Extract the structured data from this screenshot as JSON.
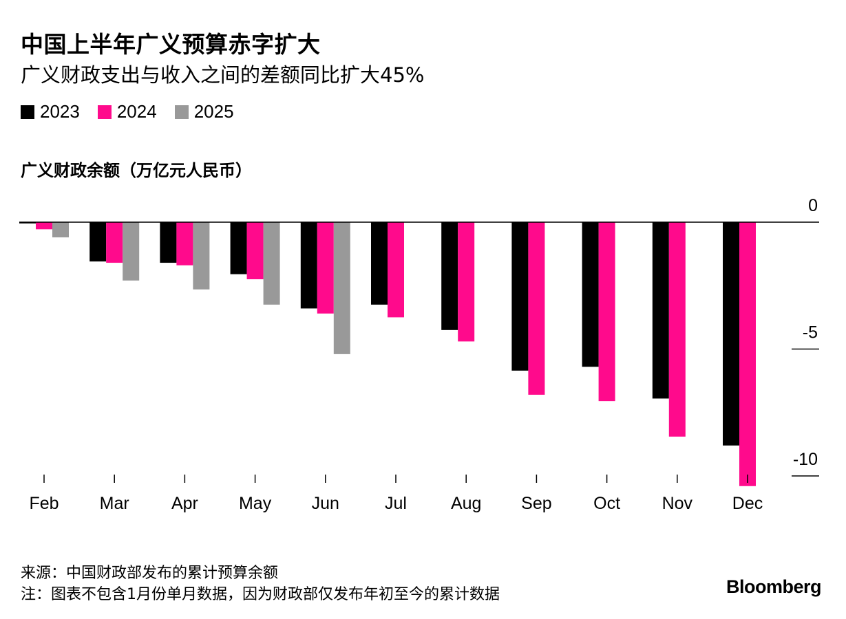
{
  "header": {
    "title": "中国上半年广义预算赤字扩大",
    "subtitle": "广义财政支出与收入之间的差额同比扩大45%"
  },
  "legend": {
    "items": [
      {
        "label": "2023",
        "color": "#000000"
      },
      {
        "label": "2024",
        "color": "#ff0a8c"
      },
      {
        "label": "2025",
        "color": "#999999"
      }
    ]
  },
  "unit_label": "广义财政余额（万亿元人民币）",
  "chart_data": {
    "type": "bar",
    "categories": [
      "Feb",
      "Mar",
      "Apr",
      "May",
      "Jun",
      "Jul",
      "Aug",
      "Sep",
      "Oct",
      "Nov",
      "Dec"
    ],
    "series": [
      {
        "name": "2023",
        "color": "#000000",
        "values": [
          -0.05,
          -1.55,
          -1.6,
          -2.05,
          -3.4,
          -3.25,
          -4.25,
          -5.85,
          -5.7,
          -6.95,
          -8.8
        ]
      },
      {
        "name": "2024",
        "color": "#ff0a8c",
        "values": [
          -0.28,
          -1.6,
          -1.7,
          -2.25,
          -3.6,
          -3.75,
          -4.7,
          -6.8,
          -7.05,
          -8.45,
          -10.4
        ]
      },
      {
        "name": "2025",
        "color": "#999999",
        "values": [
          -0.6,
          -2.3,
          -2.65,
          -3.25,
          -5.2,
          null,
          null,
          null,
          null,
          null,
          null
        ]
      }
    ],
    "yticks": [
      0,
      -5,
      -10
    ],
    "ytick_labels": [
      "0",
      "-5",
      "-10"
    ],
    "ylim": [
      -10.5,
      0
    ],
    "grid": false
  },
  "footer": {
    "source": "来源：中国财政部发布的累计预算余额",
    "note": "注：图表不包含1月份单月数据，因为财政部仅发布年初至今的累计数据",
    "brand": "Bloomberg"
  }
}
